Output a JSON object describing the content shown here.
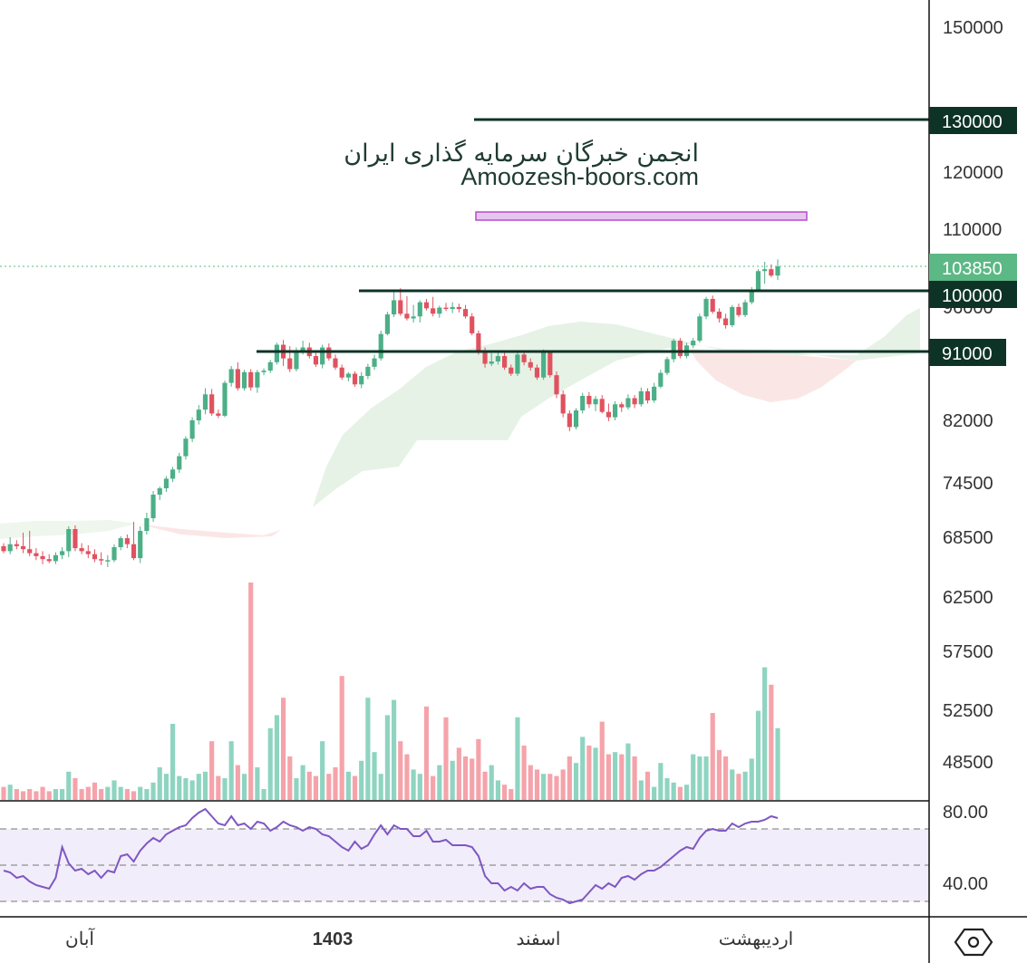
{
  "watermark": {
    "line1": "انجمن خبرگان سرمایه گذاری ایران",
    "line2": "Amoozesh-boors.com"
  },
  "price_axis": {
    "ticks": [
      "150000",
      "120000",
      "110000",
      "82000",
      "74500",
      "68500",
      "62500",
      "57500",
      "52500",
      "48500"
    ],
    "tick_values": [
      150000,
      120000,
      110000,
      82000,
      74500,
      68500,
      62500,
      57500,
      52500,
      48500
    ],
    "hidden_partial_tick": "96000"
  },
  "rsi_axis": {
    "ticks": [
      "80.00",
      "40.00"
    ],
    "band": [
      30,
      70
    ],
    "mid": 50
  },
  "time_axis": {
    "labels": [
      "آبان",
      "1403",
      "اسفند",
      "اردیبهشت"
    ]
  },
  "price_tags": {
    "last": "103850",
    "levels": [
      "130000",
      "100000",
      "91000"
    ]
  },
  "settings_icon": "hexagon-settings-icon",
  "colors": {
    "up": "#4caf87",
    "down": "#e0525f",
    "level_line": "#0d3326",
    "last_price": "#5cb885",
    "zone": "#e6c6ef",
    "rsi_line": "#7e57c2",
    "rsi_band": "#f1edfa",
    "cloud_green": "#e6f2e6",
    "cloud_red": "#fbe6e6"
  },
  "chart_data": [
    {
      "type": "candlestick",
      "title": "",
      "ylabel": "",
      "levels": [
        130000,
        100000,
        91000
      ],
      "last_price": 103850,
      "resistance_zone": [
        111500,
        113000
      ],
      "ohlc": [
        [
          67600,
          67900,
          66900,
          67100
        ],
        [
          67100,
          68500,
          66800,
          67800
        ],
        [
          67800,
          68200,
          67300,
          67600
        ],
        [
          67600,
          69000,
          66900,
          67300
        ],
        [
          67300,
          69200,
          66600,
          66900
        ],
        [
          66900,
          67400,
          66200,
          66600
        ],
        [
          66600,
          67100,
          65800,
          66300
        ],
        [
          66300,
          66800,
          65900,
          66100
        ],
        [
          66100,
          67000,
          65800,
          66700
        ],
        [
          66700,
          67500,
          66300,
          67100
        ],
        [
          67100,
          69700,
          66500,
          69400
        ],
        [
          69400,
          69800,
          67100,
          67400
        ],
        [
          67400,
          67900,
          66800,
          67100
        ],
        [
          67100,
          67700,
          66400,
          66800
        ],
        [
          66800,
          67300,
          66000,
          66300
        ],
        [
          66300,
          67000,
          65700,
          66200
        ],
        [
          66200,
          66700,
          65500,
          66200
        ],
        [
          66200,
          67800,
          66000,
          67500
        ],
        [
          67500,
          68600,
          67200,
          68400
        ],
        [
          68400,
          68800,
          67400,
          67800
        ],
        [
          67800,
          70200,
          66200,
          66400
        ],
        [
          66400,
          69700,
          65900,
          69200
        ],
        [
          69200,
          71200,
          68800,
          70600
        ],
        [
          70600,
          73600,
          70200,
          73200
        ],
        [
          73200,
          74100,
          72600,
          73900
        ],
        [
          73900,
          75300,
          73500,
          75000
        ],
        [
          75000,
          76400,
          74600,
          76100
        ],
        [
          76100,
          78100,
          75700,
          77700
        ],
        [
          77700,
          80100,
          77300,
          79800
        ],
        [
          79800,
          82400,
          79400,
          82000
        ],
        [
          82000,
          84000,
          81500,
          83400
        ],
        [
          83400,
          86200,
          82800,
          85400
        ],
        [
          85400,
          86100,
          82600,
          82900
        ],
        [
          82900,
          83400,
          82300,
          82600
        ],
        [
          82600,
          87200,
          82400,
          86900
        ],
        [
          86900,
          89100,
          86400,
          88700
        ],
        [
          88700,
          89600,
          85900,
          86200
        ],
        [
          86200,
          88600,
          85900,
          88300
        ],
        [
          88300,
          88700,
          85900,
          86300
        ],
        [
          86300,
          88600,
          85600,
          88300
        ],
        [
          88300,
          88800,
          87900,
          88500
        ],
        [
          88500,
          89900,
          88200,
          89600
        ],
        [
          89600,
          92300,
          89300,
          92000
        ],
        [
          92000,
          92700,
          89100,
          90100
        ],
        [
          90100,
          91800,
          88300,
          88700
        ],
        [
          88700,
          91600,
          88400,
          91200
        ],
        [
          91200,
          92600,
          90600,
          91600
        ],
        [
          91600,
          92300,
          90100,
          90400
        ],
        [
          90400,
          90800,
          89000,
          89300
        ],
        [
          89300,
          92000,
          88800,
          91600
        ],
        [
          91600,
          92200,
          89800,
          90100
        ],
        [
          90100,
          90600,
          88600,
          88900
        ],
        [
          88900,
          89300,
          87300,
          87600
        ],
        [
          87600,
          88300,
          87100,
          88100
        ],
        [
          88100,
          88400,
          86400,
          86700
        ],
        [
          86700,
          88300,
          86200,
          87800
        ],
        [
          87800,
          89400,
          87400,
          89000
        ],
        [
          89000,
          90600,
          88600,
          90100
        ],
        [
          90100,
          94100,
          89800,
          93600
        ],
        [
          93600,
          96900,
          93400,
          96500
        ],
        [
          96500,
          100200,
          96100,
          98600
        ],
        [
          98600,
          100400,
          96300,
          96600
        ],
        [
          96600,
          99200,
          95600,
          95900
        ],
        [
          95900,
          97900,
          95300,
          96200
        ],
        [
          96200,
          98600,
          95300,
          98300
        ],
        [
          98300,
          98800,
          97100,
          97400
        ],
        [
          97400,
          99100,
          96200,
          96600
        ],
        [
          96600,
          97800,
          96000,
          97500
        ],
        [
          97500,
          98200,
          97000,
          97300
        ],
        [
          97300,
          98300,
          96700,
          97600
        ],
        [
          97600,
          98100,
          96800,
          97300
        ],
        [
          97300,
          97900,
          95900,
          96200
        ],
        [
          96200,
          96700,
          93400,
          93700
        ],
        [
          93700,
          94100,
          90600,
          91100
        ],
        [
          91100,
          91600,
          88900,
          89400
        ],
        [
          89400,
          90800,
          89100,
          89700
        ],
        [
          89700,
          91100,
          89300,
          90400
        ],
        [
          90400,
          91000,
          88600,
          88900
        ],
        [
          88900,
          89300,
          87800,
          88100
        ],
        [
          88100,
          91100,
          87800,
          90600
        ],
        [
          90600,
          91200,
          89200,
          89600
        ],
        [
          89600,
          90100,
          88500,
          88900
        ],
        [
          88900,
          89300,
          87300,
          87600
        ],
        [
          87600,
          91300,
          87300,
          90900
        ],
        [
          90900,
          91200,
          87600,
          87900
        ],
        [
          87900,
          88400,
          84900,
          85400
        ],
        [
          85400,
          85900,
          82400,
          82900
        ],
        [
          82900,
          83300,
          80700,
          81200
        ],
        [
          81200,
          83600,
          80900,
          83300
        ],
        [
          83300,
          85600,
          82900,
          85200
        ],
        [
          85200,
          85700,
          83600,
          84100
        ],
        [
          84100,
          85200,
          83200,
          84800
        ],
        [
          84800,
          85300,
          82900,
          83100
        ],
        [
          83100,
          84200,
          81900,
          82400
        ],
        [
          82400,
          84500,
          82000,
          84100
        ],
        [
          84100,
          84400,
          83100,
          83700
        ],
        [
          83700,
          85400,
          83400,
          84900
        ],
        [
          84900,
          85300,
          83600,
          84100
        ],
        [
          84100,
          86300,
          83800,
          85800
        ],
        [
          85800,
          86200,
          84200,
          84600
        ],
        [
          84600,
          86900,
          84300,
          86400
        ],
        [
          86400,
          88600,
          86200,
          88200
        ],
        [
          88200,
          90300,
          87900,
          90000
        ],
        [
          90000,
          92900,
          89600,
          92600
        ],
        [
          92600,
          93000,
          90100,
          90400
        ],
        [
          90400,
          92300,
          90100,
          91900
        ],
        [
          91900,
          93000,
          91500,
          92600
        ],
        [
          92600,
          96600,
          92300,
          96200
        ],
        [
          96200,
          99100,
          95800,
          98800
        ],
        [
          98800,
          99300,
          96600,
          96900
        ],
        [
          96900,
          97400,
          95300,
          95900
        ],
        [
          95900,
          96600,
          94400,
          94900
        ],
        [
          94900,
          97900,
          94600,
          97600
        ],
        [
          97600,
          98100,
          96100,
          96400
        ],
        [
          96400,
          98700,
          96100,
          98300
        ],
        [
          98300,
          100600,
          98000,
          100200
        ],
        [
          100200,
          103400,
          99900,
          103100
        ],
        [
          103100,
          104600,
          101100,
          103400
        ],
        [
          103400,
          104200,
          102100,
          102400
        ],
        [
          102400,
          105000,
          101700,
          103850
        ]
      ],
      "volume_heights": [
        0.06,
        0.07,
        0.05,
        0.04,
        0.05,
        0.04,
        0.06,
        0.04,
        0.05,
        0.05,
        0.13,
        0.1,
        0.05,
        0.06,
        0.08,
        0.05,
        0.06,
        0.09,
        0.06,
        0.05,
        0.04,
        0.06,
        0.05,
        0.08,
        0.1,
        0.12,
        0.2,
        0.11,
        0.1,
        0.09,
        0.12,
        0.13,
        0.27,
        0.11,
        0.1,
        0.27,
        0.16,
        0.12,
        0.42,
        0.15,
        0.05,
        0.33,
        0.39,
        0.47,
        0.2,
        0.1,
        0.16,
        0.13,
        0.11,
        0.27,
        0.12,
        0.15,
        0.31,
        0.13,
        0.11,
        0.18,
        0.47,
        0.22,
        0.12,
        0.39,
        0.46,
        0.27,
        0.21,
        0.14,
        0.12,
        0.43,
        0.11,
        0.16,
        0.38,
        0.18,
        0.24,
        0.2,
        0.19,
        0.28,
        0.13,
        0.16,
        0.09,
        0.07,
        0.05,
        0.38,
        0.25,
        0.16,
        0.14,
        0.12,
        0.12,
        0.11,
        0.14,
        0.2,
        0.17,
        0.29,
        0.25,
        0.24,
        0.36,
        0.21,
        0.22,
        0.21,
        0.26,
        0.2,
        0.09,
        0.13,
        0.06,
        0.17,
        0.1,
        0.08,
        0.06,
        0.07,
        0.21,
        0.2,
        0.2,
        0.4,
        0.23,
        0.2,
        0.14,
        0.12,
        0.13,
        0.19,
        0.41,
        0.61,
        0.53,
        0.33
      ],
      "volume_spike_heights": [
        0.0,
        0.0,
        0.0,
        0.0,
        0.0,
        0.0,
        0.0,
        0.0,
        0.0,
        0.0,
        0.0,
        0.0,
        0.0,
        0.0,
        0.0,
        0.0,
        0.0,
        0.0,
        0.0,
        0.0,
        0.0,
        0.0,
        0.0,
        0.0,
        0.15,
        0.0,
        0.35,
        0.0,
        0.0,
        0.0,
        0.0,
        0.0,
        0.0,
        0.0,
        0.0,
        0.0,
        0.0,
        0.0,
        1.0,
        0.0,
        0.0,
        0.0,
        0.0,
        0.0,
        0.0,
        0.0,
        0.0,
        0.0,
        0.0,
        0.0,
        0.0,
        0.0,
        0.57,
        0.0,
        0.0,
        0.0,
        0.0,
        0.0,
        0.0,
        0.0,
        0.0,
        0.0,
        0.0,
        0.0,
        0.0,
        0.0,
        0.0,
        0.0,
        0.0,
        0.0,
        0.0,
        0.0,
        0.0,
        0.0,
        0.0,
        0.0,
        0.0,
        0.0,
        0.0,
        0.0,
        0.0,
        0.0,
        0.0,
        0.0,
        0.0,
        0.0,
        0.0,
        0.0,
        0.0,
        0.0,
        0.0,
        0.0,
        0.0,
        0.0,
        0.0,
        0.0,
        0.0,
        0.0,
        0.0,
        0.0,
        0.0,
        0.0,
        0.0,
        0.0,
        0.0,
        0.0,
        0.0,
        0.0,
        0.0,
        0.0,
        0.0,
        0.0,
        0.0,
        0.0,
        0.0,
        0.0,
        0.0,
        0.0,
        0.0,
        0.0
      ],
      "rsi": [
        47,
        46,
        43,
        44,
        41,
        39,
        38,
        37,
        43,
        60,
        51,
        47,
        48,
        45,
        47,
        43,
        47,
        46,
        55,
        56,
        52,
        58,
        62,
        65,
        63,
        67,
        69,
        71,
        72,
        76,
        79,
        81,
        77,
        73,
        72,
        77,
        72,
        73,
        70,
        74,
        73,
        69,
        71,
        74,
        72,
        71,
        69,
        71,
        70,
        67,
        66,
        63,
        60,
        58,
        63,
        59,
        61,
        67,
        72,
        67,
        72,
        70,
        70,
        66,
        66,
        69,
        63,
        63,
        64,
        61,
        61,
        61,
        60,
        55,
        44,
        40,
        40,
        36,
        38,
        36,
        40,
        37,
        38,
        38,
        34,
        32,
        31,
        29,
        30,
        31,
        35,
        39,
        37,
        40,
        38,
        43,
        44,
        42,
        45,
        47,
        47,
        49,
        52,
        55,
        58,
        60,
        59,
        65,
        69,
        70,
        69,
        69,
        73,
        71,
        73,
        74,
        74,
        75,
        77,
        76
      ]
    }
  ]
}
